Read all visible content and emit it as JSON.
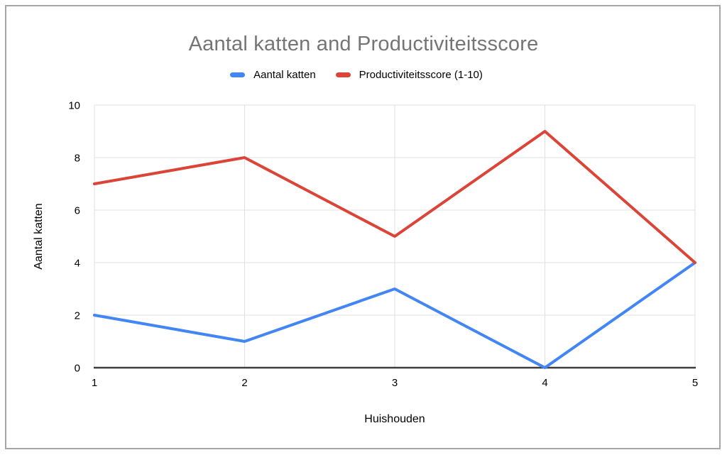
{
  "chart_data": {
    "type": "line",
    "title": "Aantal katten and Productiviteitsscore",
    "xlabel": "Huishouden",
    "ylabel": "Aantal katten",
    "x": [
      1,
      2,
      3,
      4,
      5
    ],
    "categories": [
      "1",
      "2",
      "3",
      "4",
      "5"
    ],
    "series": [
      {
        "name": "Aantal katten",
        "color": "#4285F4",
        "values": [
          2,
          1,
          3,
          0,
          4
        ]
      },
      {
        "name": "Productiviteitsscore (1-10)",
        "color": "#DB4437",
        "values": [
          7,
          8,
          5,
          9,
          4
        ]
      }
    ],
    "xlim": [
      1,
      5
    ],
    "ylim": [
      0,
      10
    ],
    "x_ticks": [
      1,
      2,
      3,
      4,
      5
    ],
    "y_ticks": [
      0,
      2,
      4,
      6,
      8,
      10
    ],
    "grid": true,
    "legend_position": "top"
  },
  "colors": {
    "title_text": "#757575",
    "axis_text": "#000000",
    "gridline": "#e0e0e0",
    "axis_line": "#3d3d3d",
    "frame_border": "#a6a6a6",
    "background": "#ffffff"
  }
}
